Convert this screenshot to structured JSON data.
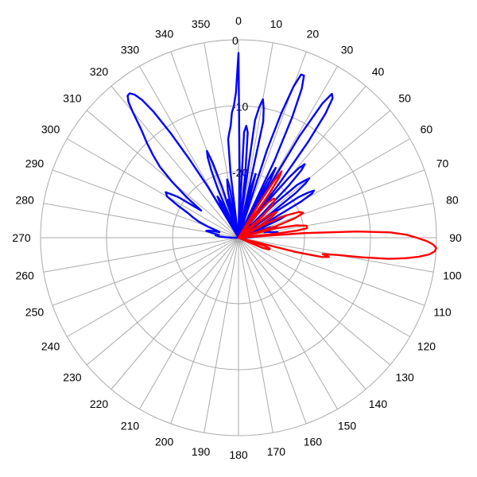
{
  "chart_data": {
    "type": "polar-line",
    "angular_unit": "degrees",
    "angular_direction": "clockwise",
    "zero_at": "top",
    "radial_unit": "dB",
    "r_range": [
      -30,
      0
    ],
    "rings_db": [
      0,
      -10,
      -20,
      -30
    ],
    "ring_labels": [
      "0",
      "-10",
      "-20"
    ],
    "angle_ticks": [
      "0",
      "10",
      "20",
      "30",
      "40",
      "50",
      "60",
      "70",
      "80",
      "90",
      "100",
      "110",
      "120",
      "130",
      "140",
      "150",
      "160",
      "170",
      "180",
      "190",
      "200",
      "210",
      "220",
      "230",
      "240",
      "250",
      "260",
      "270",
      "280",
      "290",
      "300",
      "310",
      "320",
      "330",
      "340",
      "350"
    ],
    "grid": true,
    "colors": {
      "blue": "#0000ff",
      "red": "#ff0000",
      "grid": "#aaaaaa"
    },
    "series": [
      {
        "color": "#0000ff",
        "points": [
          [
            -14,
            -30
          ],
          [
            -13,
            -23
          ],
          [
            -12,
            -22
          ],
          [
            -11,
            -21
          ],
          [
            -10,
            -22
          ],
          [
            -9,
            -28
          ],
          [
            -8,
            -29
          ],
          [
            -7,
            -20
          ],
          [
            -6,
            -15
          ],
          [
            -5,
            -14
          ],
          [
            -4,
            -13
          ],
          [
            -3,
            -11
          ],
          [
            -2,
            -10
          ],
          [
            -1,
            -8
          ],
          [
            0,
            -2
          ],
          [
            1,
            -20
          ],
          [
            2,
            -30
          ],
          [
            3,
            -14
          ],
          [
            4,
            -13
          ],
          [
            5,
            -14
          ],
          [
            6,
            -20
          ],
          [
            7,
            -28
          ],
          [
            8,
            -12
          ],
          [
            9,
            -10
          ],
          [
            10,
            -8.7
          ],
          [
            11,
            -10
          ],
          [
            12,
            -12
          ],
          [
            13,
            -30
          ],
          [
            14,
            -22
          ],
          [
            15,
            -20
          ],
          [
            16,
            -25
          ],
          [
            17,
            -30
          ],
          [
            18,
            -16
          ],
          [
            19,
            -10
          ],
          [
            20,
            -5.6
          ],
          [
            21,
            -3.5
          ],
          [
            22,
            -3.5
          ],
          [
            23,
            -5.5
          ],
          [
            24,
            -10
          ],
          [
            25,
            -17
          ],
          [
            26,
            -30
          ],
          [
            27,
            -20
          ],
          [
            28,
            -18
          ],
          [
            29,
            -20
          ],
          [
            30,
            -30
          ],
          [
            31,
            -12
          ],
          [
            32,
            -6
          ],
          [
            33,
            -4
          ],
          [
            34,
            -4.5
          ],
          [
            35,
            -7
          ],
          [
            36,
            -12
          ],
          [
            37,
            -20
          ],
          [
            38,
            -30
          ],
          [
            39,
            -22
          ],
          [
            40,
            -18
          ],
          [
            41,
            -16
          ],
          [
            42,
            -15
          ],
          [
            43,
            -16
          ],
          [
            44,
            -19
          ],
          [
            45,
            -25
          ],
          [
            46,
            -30
          ],
          [
            47,
            -22
          ],
          [
            48,
            -18
          ],
          [
            49,
            -17
          ],
          [
            50,
            -16
          ],
          [
            51,
            -17
          ],
          [
            52,
            -19
          ],
          [
            53,
            -24
          ],
          [
            54,
            -30
          ],
          [
            55,
            -23
          ],
          [
            56,
            -19
          ],
          [
            57,
            -17.5
          ],
          [
            58,
            -16.5
          ],
          [
            59,
            -17
          ],
          [
            60,
            -19
          ],
          [
            61,
            -24
          ],
          [
            62,
            -30
          ],
          [
            63,
            -26
          ],
          [
            64,
            -23
          ],
          [
            65,
            -22
          ],
          [
            66,
            -23
          ],
          [
            67,
            -26
          ],
          [
            68,
            -30
          ],
          [
            70,
            -27
          ],
          [
            72,
            -25
          ],
          [
            74,
            -24
          ],
          [
            76,
            -25
          ],
          [
            78,
            -26
          ],
          [
            80,
            -25
          ],
          [
            82,
            -24
          ],
          [
            84,
            -25
          ],
          [
            86,
            -27
          ],
          [
            88,
            -28
          ],
          [
            90,
            -29
          ],
          [
            92,
            -30
          ],
          [
            -92,
            -30
          ],
          [
            -90,
            -29
          ],
          [
            -88,
            -28
          ],
          [
            -86,
            -27
          ],
          [
            -84,
            -26.5
          ],
          [
            -82,
            -27
          ],
          [
            -80,
            -26
          ],
          [
            -78,
            -25
          ],
          [
            -76,
            -25.5
          ],
          [
            -74,
            -27
          ],
          [
            -72,
            -26.5
          ],
          [
            -70,
            -25
          ],
          [
            -68,
            -23.5
          ],
          [
            -66,
            -22.5
          ],
          [
            -64,
            -21.5
          ],
          [
            -62,
            -19.5
          ],
          [
            -60,
            -17.5
          ],
          [
            -58,
            -17
          ],
          [
            -56,
            -19
          ],
          [
            -54,
            -23
          ],
          [
            -52,
            -20
          ],
          [
            -50,
            -17
          ],
          [
            -48,
            -14
          ],
          [
            -46,
            -12
          ],
          [
            -44,
            -10
          ],
          [
            -42,
            -8
          ],
          [
            -40,
            -5
          ],
          [
            -39,
            -3.5
          ],
          [
            -38,
            -2.7
          ],
          [
            -37,
            -2.6
          ],
          [
            -36,
            -3.2
          ],
          [
            -35,
            -4.5
          ],
          [
            -34,
            -7
          ],
          [
            -33,
            -11
          ],
          [
            -32,
            -16
          ],
          [
            -31,
            -21
          ],
          [
            -30,
            -30
          ],
          [
            -29,
            -26
          ],
          [
            -28,
            -24
          ],
          [
            -27,
            -23
          ],
          [
            -26,
            -24
          ],
          [
            -25,
            -29
          ],
          [
            -24,
            -30
          ],
          [
            -23,
            -22
          ],
          [
            -22,
            -19
          ],
          [
            -21,
            -17
          ],
          [
            -20,
            -16
          ],
          [
            -19,
            -18
          ],
          [
            -18,
            -22
          ],
          [
            -17,
            -30
          ],
          [
            -16,
            -25
          ],
          [
            -15,
            -24
          ],
          [
            -14,
            -30
          ]
        ]
      },
      {
        "color": "#ff0000",
        "points": [
          [
            30,
            -30
          ],
          [
            31,
            -24
          ],
          [
            32,
            -20
          ],
          [
            33,
            -18
          ],
          [
            34,
            -19
          ],
          [
            35,
            -22
          ],
          [
            36,
            -30
          ],
          [
            38,
            -26
          ],
          [
            40,
            -23
          ],
          [
            42,
            -22
          ],
          [
            44,
            -22
          ],
          [
            46,
            -23
          ],
          [
            48,
            -25
          ],
          [
            50,
            -30
          ],
          [
            52,
            -26
          ],
          [
            54,
            -24
          ],
          [
            56,
            -23
          ],
          [
            58,
            -24
          ],
          [
            60,
            -26
          ],
          [
            61,
            -30
          ],
          [
            63,
            -25
          ],
          [
            65,
            -22
          ],
          [
            67,
            -20
          ],
          [
            69,
            -19.5
          ],
          [
            71,
            -21
          ],
          [
            73,
            -24
          ],
          [
            74,
            -30
          ],
          [
            76,
            -24
          ],
          [
            78,
            -21
          ],
          [
            80,
            -19.5
          ],
          [
            82,
            -19.5
          ],
          [
            83,
            -21
          ],
          [
            84,
            -25
          ],
          [
            85,
            -30
          ],
          [
            86,
            -20
          ],
          [
            87,
            -12
          ],
          [
            88,
            -7
          ],
          [
            89,
            -4.5
          ],
          [
            90,
            -3
          ],
          [
            91,
            -1.5
          ],
          [
            92,
            -0.5
          ],
          [
            93,
            0
          ],
          [
            94,
            -0.2
          ],
          [
            95,
            -1
          ],
          [
            96,
            -2.5
          ],
          [
            97,
            -4.5
          ],
          [
            98,
            -7
          ],
          [
            99,
            -11
          ],
          [
            100,
            -15
          ],
          [
            101,
            -17
          ],
          [
            102,
            -16
          ],
          [
            103,
            -17
          ],
          [
            104,
            -21
          ],
          [
            105,
            -30
          ],
          [
            107,
            -26
          ],
          [
            109,
            -25
          ],
          [
            111,
            -25
          ],
          [
            113,
            -26
          ],
          [
            115,
            -30
          ],
          [
            200,
            -30
          ],
          [
            30,
            -30
          ]
        ]
      }
    ]
  }
}
